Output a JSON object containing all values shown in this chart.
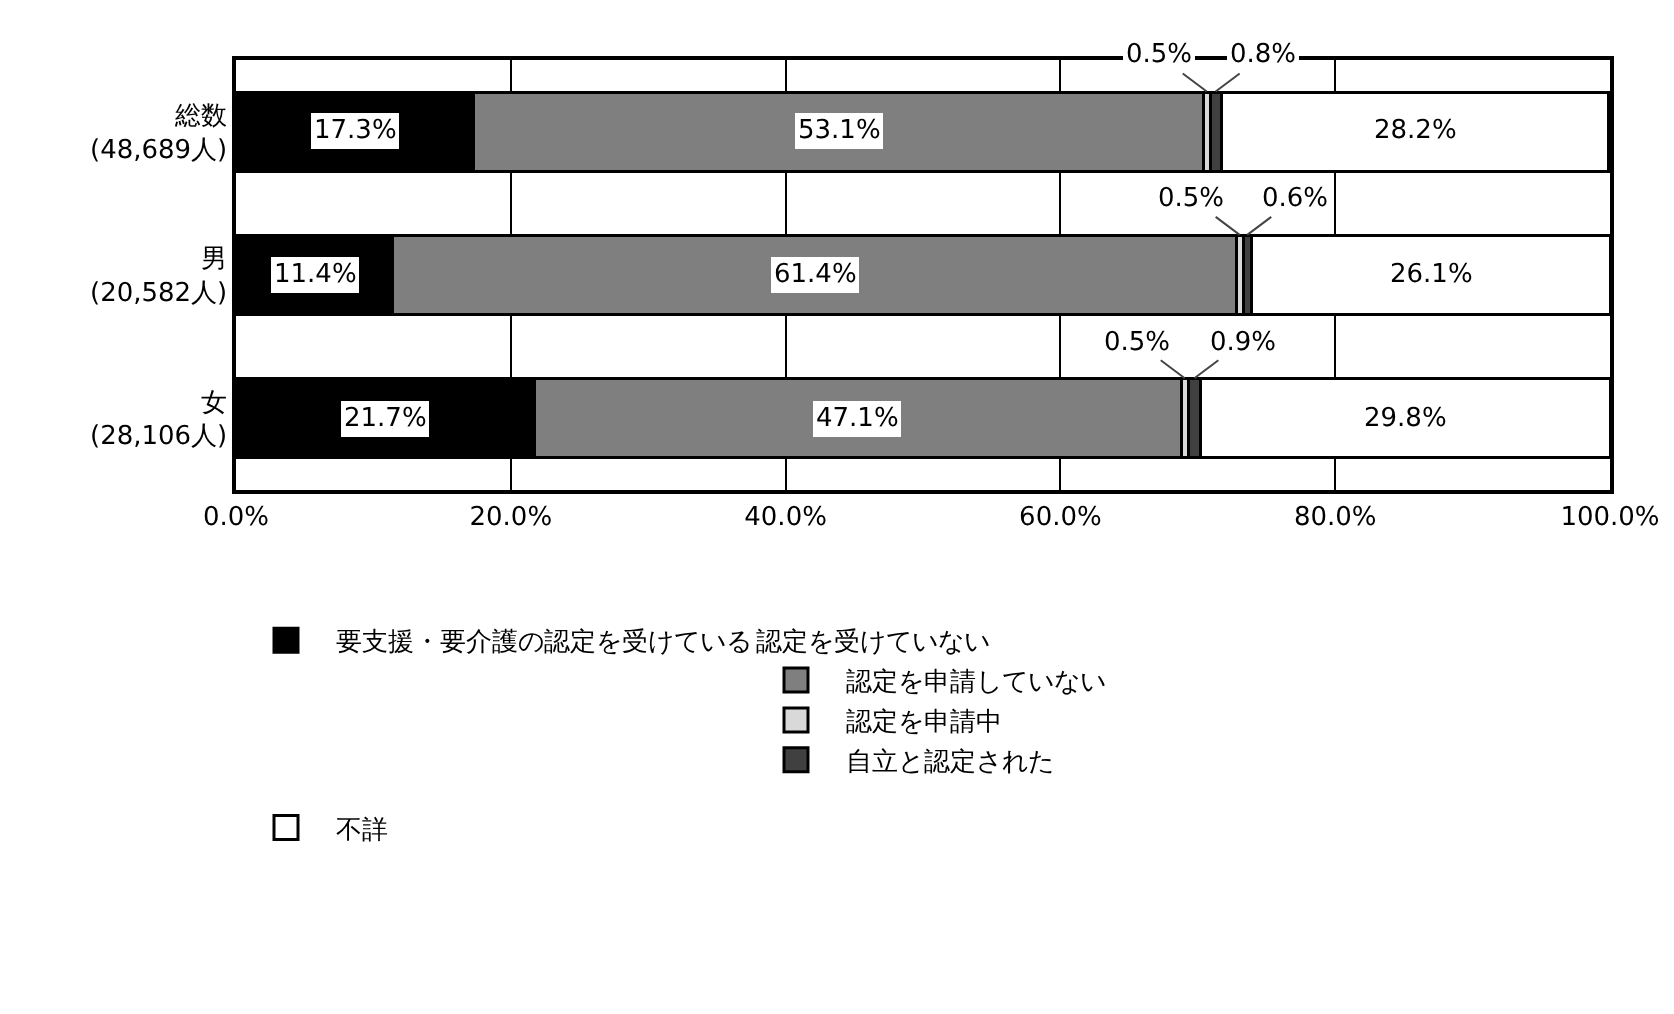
{
  "chart_data": {
    "type": "bar",
    "orientation": "horizontal",
    "stacked": true,
    "categories": [
      "総数\n(48,689人)",
      "男\n(20,582人)",
      "女\n(28,106人)"
    ],
    "series": [
      {
        "name": "要支援・要介護の認定を受けている",
        "color": "#000000",
        "values": [
          17.3,
          11.4,
          21.7
        ],
        "value_labels": [
          "17.3%",
          "11.4%",
          "21.7%"
        ]
      },
      {
        "name": "認定を申請していない",
        "color": "#7f7f7f",
        "values": [
          53.1,
          61.4,
          47.1
        ],
        "value_labels": [
          "53.1%",
          "61.4%",
          "47.1%"
        ]
      },
      {
        "name": "認定を申請中",
        "color": "#d9d9d9",
        "values": [
          0.5,
          0.5,
          0.5
        ],
        "value_labels": [
          "0.5%",
          "0.5%",
          "0.5%"
        ]
      },
      {
        "name": "自立と認定された",
        "color": "#404040",
        "values": [
          0.8,
          0.6,
          0.9
        ],
        "value_labels": [
          "0.8%",
          "0.6%",
          "0.9%"
        ]
      },
      {
        "name": "不詳",
        "color": "#ffffff",
        "values": [
          28.2,
          26.1,
          29.8
        ],
        "value_labels": [
          "28.2%",
          "26.1%",
          "29.8%"
        ]
      }
    ],
    "legend_title": "認定を受けていない",
    "xlim": [
      0,
      100
    ],
    "xticks": [
      {
        "value": 0,
        "label": "0.0%"
      },
      {
        "value": 20,
        "label": "20.0%"
      },
      {
        "value": 40,
        "label": "40.0%"
      },
      {
        "value": 60,
        "label": "60.0%"
      },
      {
        "value": 80,
        "label": "80.0%"
      },
      {
        "value": 100,
        "label": "100.0%"
      }
    ],
    "grid": "x",
    "legend": "bottom"
  }
}
